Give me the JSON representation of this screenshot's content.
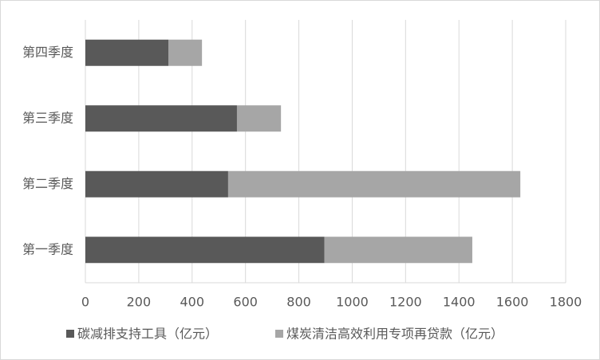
{
  "chart_data": {
    "type": "stacked-barh",
    "categories": [
      "第一季度",
      "第二季度",
      "第三季度",
      "第四季度"
    ],
    "series": [
      {
        "name": "碳减排支持工具（亿元）",
        "color": "#595959",
        "values": [
          896,
          535,
          568,
          311
        ]
      },
      {
        "name": "煤炭清洁高效利用专项再贷款（亿元）",
        "color": "#a6a6a6",
        "values": [
          554,
          1095,
          165,
          126
        ]
      }
    ],
    "xlim": [
      0,
      1800
    ],
    "xticks": [
      0,
      200,
      400,
      600,
      800,
      1000,
      1200,
      1400,
      1600,
      1800
    ],
    "grid": true,
    "legend": "bottom"
  }
}
